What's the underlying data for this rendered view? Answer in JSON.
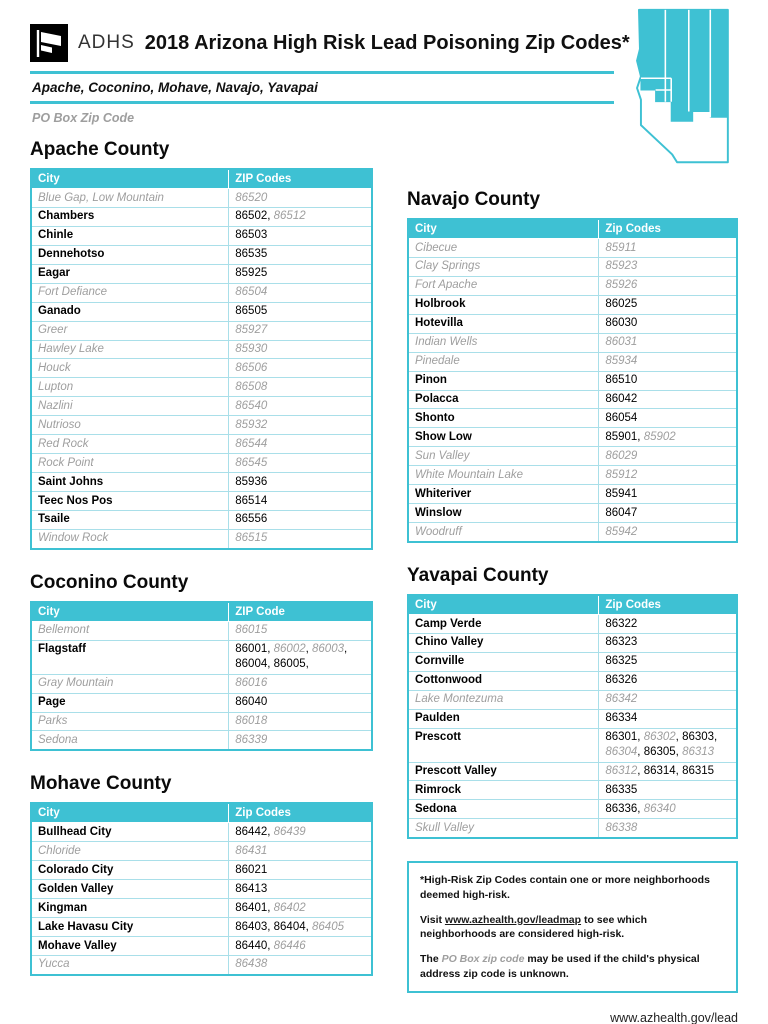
{
  "colors": {
    "accent": "#3EC1D3",
    "pobox_gray": "#9E9E9E"
  },
  "icons": {
    "logo": "adhs-flag-logo",
    "map": "arizona-county-map"
  },
  "header": {
    "logo": "ADHS",
    "title": "2018 Arizona High Risk Lead Poisoning Zip Codes*",
    "counties_line": "Apache, Coconino, Mohave, Navajo, Yavapai",
    "po_box_legend": "PO Box Zip Code"
  },
  "counties": [
    {
      "name": "Apache County",
      "columns": [
        "City",
        "ZIP Codes"
      ],
      "rows": [
        {
          "city": "Blue Gap, Low Mountain",
          "po": true,
          "zips": [
            {
              "z": "86520",
              "po": true
            }
          ]
        },
        {
          "city": "Chambers",
          "po": false,
          "zips": [
            {
              "z": "86502",
              "po": false
            },
            {
              "z": "86512",
              "po": true
            }
          ]
        },
        {
          "city": "Chinle",
          "po": false,
          "zips": [
            {
              "z": "86503",
              "po": false
            }
          ]
        },
        {
          "city": "Dennehotso",
          "po": false,
          "zips": [
            {
              "z": "86535",
              "po": false
            }
          ]
        },
        {
          "city": "Eagar",
          "po": false,
          "zips": [
            {
              "z": "85925",
              "po": false
            }
          ]
        },
        {
          "city": "Fort Defiance",
          "po": true,
          "zips": [
            {
              "z": "86504",
              "po": true
            }
          ]
        },
        {
          "city": "Ganado",
          "po": false,
          "zips": [
            {
              "z": "86505",
              "po": false
            }
          ]
        },
        {
          "city": "Greer",
          "po": true,
          "zips": [
            {
              "z": "85927",
              "po": true
            }
          ]
        },
        {
          "city": "Hawley Lake",
          "po": true,
          "zips": [
            {
              "z": "85930",
              "po": true
            }
          ]
        },
        {
          "city": "Houck",
          "po": true,
          "zips": [
            {
              "z": "86506",
              "po": true
            }
          ]
        },
        {
          "city": "Lupton",
          "po": true,
          "zips": [
            {
              "z": "86508",
              "po": true
            }
          ]
        },
        {
          "city": "Nazlini",
          "po": true,
          "zips": [
            {
              "z": "86540",
              "po": true
            }
          ]
        },
        {
          "city": "Nutrioso",
          "po": true,
          "zips": [
            {
              "z": "85932",
              "po": true
            }
          ]
        },
        {
          "city": "Red Rock",
          "po": true,
          "zips": [
            {
              "z": "86544",
              "po": true
            }
          ]
        },
        {
          "city": "Rock Point",
          "po": true,
          "zips": [
            {
              "z": "86545",
              "po": true
            }
          ]
        },
        {
          "city": "Saint Johns",
          "po": false,
          "zips": [
            {
              "z": "85936",
              "po": false
            }
          ]
        },
        {
          "city": "Teec Nos Pos",
          "po": false,
          "zips": [
            {
              "z": "86514",
              "po": false
            }
          ]
        },
        {
          "city": "Tsaile",
          "po": false,
          "zips": [
            {
              "z": "86556",
              "po": false
            }
          ]
        },
        {
          "city": "Window Rock",
          "po": true,
          "zips": [
            {
              "z": "86515",
              "po": true
            }
          ]
        }
      ]
    },
    {
      "name": "Coconino County",
      "columns": [
        "City",
        "ZIP Code"
      ],
      "rows": [
        {
          "city": "Bellemont",
          "po": true,
          "zips": [
            {
              "z": "86015",
              "po": true
            }
          ]
        },
        {
          "city": "Flagstaff",
          "po": false,
          "zips": [
            {
              "z": "86001",
              "po": false
            },
            {
              "z": "86002",
              "po": true
            },
            {
              "z": "86003",
              "po": true
            },
            {
              "z": "86004",
              "po": false
            },
            {
              "z": "86005,",
              "po": false
            }
          ]
        },
        {
          "city": "Gray Mountain",
          "po": true,
          "zips": [
            {
              "z": "86016",
              "po": true
            }
          ]
        },
        {
          "city": "Page",
          "po": false,
          "zips": [
            {
              "z": "86040",
              "po": false
            }
          ]
        },
        {
          "city": "Parks",
          "po": true,
          "zips": [
            {
              "z": "86018",
              "po": true
            }
          ]
        },
        {
          "city": "Sedona",
          "po": true,
          "zips": [
            {
              "z": "86339",
              "po": true
            }
          ]
        }
      ]
    },
    {
      "name": "Mohave County",
      "columns": [
        "City",
        "Zip Codes"
      ],
      "rows": [
        {
          "city": "Bullhead City",
          "po": false,
          "zips": [
            {
              "z": "86442",
              "po": false
            },
            {
              "z": "86439",
              "po": true
            }
          ]
        },
        {
          "city": "Chloride",
          "po": true,
          "zips": [
            {
              "z": "86431",
              "po": true
            }
          ]
        },
        {
          "city": "Colorado City",
          "po": false,
          "zips": [
            {
              "z": "86021",
              "po": false
            }
          ]
        },
        {
          "city": "Golden Valley",
          "po": false,
          "zips": [
            {
              "z": "86413",
              "po": false
            }
          ]
        },
        {
          "city": "Kingman",
          "po": false,
          "zips": [
            {
              "z": "86401",
              "po": false
            },
            {
              "z": "86402",
              "po": true
            }
          ]
        },
        {
          "city": "Lake Havasu City",
          "po": false,
          "zips": [
            {
              "z": "86403",
              "po": false
            },
            {
              "z": "86404",
              "po": false
            },
            {
              "z": "86405",
              "po": true
            }
          ]
        },
        {
          "city": "Mohave Valley",
          "po": false,
          "zips": [
            {
              "z": "86440",
              "po": false
            },
            {
              "z": "86446",
              "po": true
            }
          ]
        },
        {
          "city": "Yucca",
          "po": true,
          "zips": [
            {
              "z": "86438",
              "po": true
            }
          ]
        }
      ]
    },
    {
      "name": "Navajo County",
      "columns": [
        "City",
        "Zip Codes"
      ],
      "rows": [
        {
          "city": "Cibecue",
          "po": true,
          "zips": [
            {
              "z": "85911",
              "po": true
            }
          ]
        },
        {
          "city": "Clay Springs",
          "po": true,
          "zips": [
            {
              "z": "85923",
              "po": true
            }
          ]
        },
        {
          "city": "Fort Apache",
          "po": true,
          "zips": [
            {
              "z": "85926",
              "po": true
            }
          ]
        },
        {
          "city": "Holbrook",
          "po": false,
          "zips": [
            {
              "z": "86025",
              "po": false
            }
          ]
        },
        {
          "city": "Hotevilla",
          "po": false,
          "zips": [
            {
              "z": "86030",
              "po": false
            }
          ]
        },
        {
          "city": "Indian Wells",
          "po": true,
          "zips": [
            {
              "z": "86031",
              "po": true
            }
          ]
        },
        {
          "city": "Pinedale",
          "po": true,
          "zips": [
            {
              "z": "85934",
              "po": true
            }
          ]
        },
        {
          "city": "Pinon",
          "po": false,
          "zips": [
            {
              "z": "86510",
              "po": false
            }
          ]
        },
        {
          "city": "Polacca",
          "po": false,
          "zips": [
            {
              "z": "86042",
              "po": false
            }
          ]
        },
        {
          "city": "Shonto",
          "po": false,
          "zips": [
            {
              "z": "86054",
              "po": false
            }
          ]
        },
        {
          "city": "Show Low",
          "po": false,
          "zips": [
            {
              "z": "85901",
              "po": false
            },
            {
              "z": "85902",
              "po": true
            }
          ]
        },
        {
          "city": "Sun Valley",
          "po": true,
          "zips": [
            {
              "z": "86029",
              "po": true
            }
          ]
        },
        {
          "city": "White Mountain Lake",
          "po": true,
          "zips": [
            {
              "z": "85912",
              "po": true
            }
          ]
        },
        {
          "city": "Whiteriver",
          "po": false,
          "zips": [
            {
              "z": "85941",
              "po": false
            }
          ]
        },
        {
          "city": "Winslow",
          "po": false,
          "zips": [
            {
              "z": "86047",
              "po": false
            }
          ]
        },
        {
          "city": "Woodruff",
          "po": true,
          "zips": [
            {
              "z": "85942",
              "po": true
            }
          ]
        }
      ]
    },
    {
      "name": "Yavapai County",
      "columns": [
        "City",
        "Zip Codes"
      ],
      "rows": [
        {
          "city": "Camp Verde",
          "po": false,
          "zips": [
            {
              "z": "86322",
              "po": false
            }
          ]
        },
        {
          "city": "Chino Valley",
          "po": false,
          "zips": [
            {
              "z": "86323",
              "po": false
            }
          ]
        },
        {
          "city": "Cornville",
          "po": false,
          "zips": [
            {
              "z": "86325",
              "po": false
            }
          ]
        },
        {
          "city": "Cottonwood",
          "po": false,
          "zips": [
            {
              "z": "86326",
              "po": false
            }
          ]
        },
        {
          "city": "Lake Montezuma",
          "po": true,
          "zips": [
            {
              "z": "86342",
              "po": true
            }
          ]
        },
        {
          "city": "Paulden",
          "po": false,
          "zips": [
            {
              "z": "86334",
              "po": false
            }
          ]
        },
        {
          "city": "Prescott",
          "po": false,
          "zips": [
            {
              "z": "86301",
              "po": false
            },
            {
              "z": "86302",
              "po": true
            },
            {
              "z": "86303",
              "po": false
            },
            {
              "z": "86304",
              "po": true
            },
            {
              "z": "86305",
              "po": false
            },
            {
              "z": "86313",
              "po": true
            }
          ]
        },
        {
          "city": "Prescott Valley",
          "po": false,
          "zips": [
            {
              "z": "86312",
              "po": true
            },
            {
              "z": "86314",
              "po": false
            },
            {
              "z": "86315",
              "po": false
            }
          ]
        },
        {
          "city": "Rimrock",
          "po": false,
          "zips": [
            {
              "z": "86335",
              "po": false
            }
          ]
        },
        {
          "city": "Sedona",
          "po": false,
          "zips": [
            {
              "z": "86336",
              "po": false
            },
            {
              "z": "86340",
              "po": true
            }
          ]
        },
        {
          "city": "Skull Valley",
          "po": true,
          "zips": [
            {
              "z": "86338",
              "po": true
            }
          ]
        }
      ]
    }
  ],
  "notes": [
    [
      {
        "t": "*High-Risk Zip Codes contain one or more neighborhoods deemed high-risk."
      }
    ],
    [
      {
        "t": "Visit "
      },
      {
        "t": "www.azhealth.gov/leadmap",
        "s": "link"
      },
      {
        "t": " to see which neighborhoods are considered high-risk."
      }
    ],
    [
      {
        "t": "The "
      },
      {
        "t": "PO Box zip code",
        "s": "pobox"
      },
      {
        "t": " may be used if the child's physical address zip code is unknown."
      }
    ]
  ],
  "footer_url": "www.azhealth.gov/lead"
}
